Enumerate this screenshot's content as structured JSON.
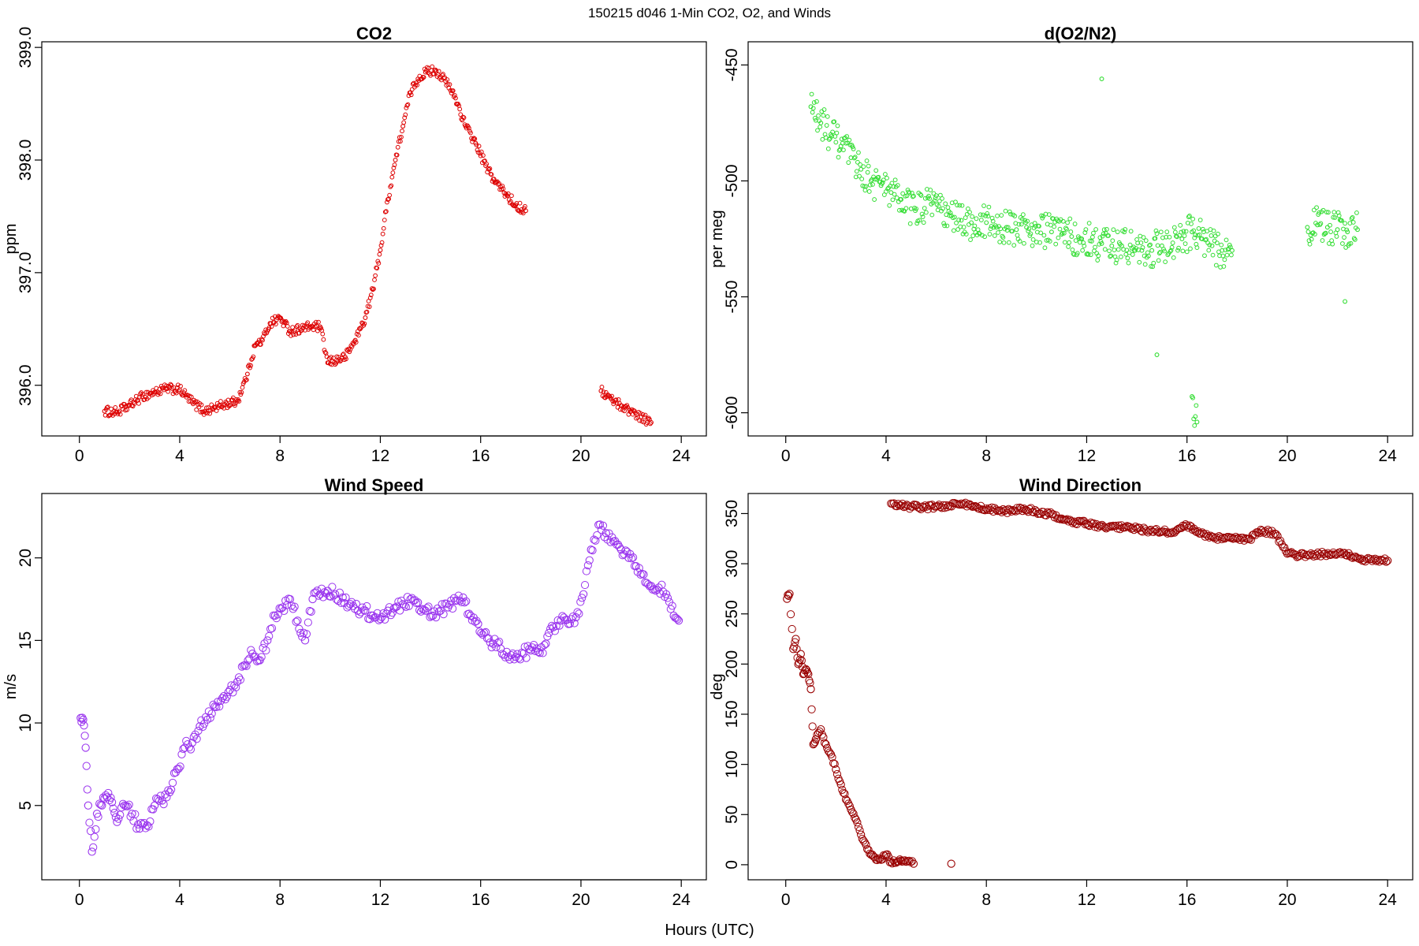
{
  "figure": {
    "suptitle": "150215   d046   1-Min CO2, O2, and Winds",
    "common_xlabel": "Hours (UTC)"
  },
  "chart_data": [
    {
      "id": "co2",
      "type": "scatter",
      "title": "CO2",
      "xlabel": "",
      "ylabel": "ppm",
      "xlim": [
        -1.5,
        25.0
      ],
      "ylim": [
        395.55,
        399.05
      ],
      "xticks": [
        0,
        4,
        8,
        12,
        16,
        20,
        24
      ],
      "yticks": [
        396.0,
        397.0,
        398.0,
        399.0
      ],
      "ytick_labels": [
        "396.0",
        "397.0",
        "398.0",
        "399.0"
      ],
      "ytick_rotate": true,
      "color": "#dd0000",
      "marker_size": "small",
      "series": [
        {
          "name": "CO2",
          "x": [
            1.0,
            1.5,
            2.0,
            2.5,
            3.0,
            3.5,
            4.0,
            4.5,
            5.0,
            5.8,
            6.3,
            6.7,
            7.0,
            7.3,
            7.6,
            8.0,
            8.4,
            8.8,
            9.2,
            9.6,
            9.9,
            10.6,
            11.0,
            11.4,
            11.7,
            12.0,
            12.3,
            12.6,
            12.9,
            13.2,
            13.5,
            13.8,
            14.2,
            14.6,
            15.0,
            15.4,
            15.8,
            16.2,
            16.6,
            17.0,
            17.4,
            17.8,
            20.8,
            21.2,
            21.6,
            22.0,
            22.4,
            22.8
          ],
          "y": [
            395.77,
            395.76,
            395.82,
            395.9,
            395.94,
            395.97,
            395.96,
            395.85,
            395.77,
            395.83,
            395.86,
            396.1,
            396.35,
            396.4,
            396.55,
            396.6,
            396.48,
            396.5,
            396.52,
            396.52,
            396.2,
            396.25,
            396.4,
            396.6,
            396.85,
            397.2,
            397.65,
            398.0,
            398.3,
            398.6,
            398.72,
            398.78,
            398.8,
            398.7,
            398.55,
            398.3,
            398.15,
            397.95,
            397.8,
            397.7,
            397.6,
            397.55,
            395.95,
            395.88,
            395.82,
            395.77,
            395.72,
            395.67
          ]
        }
      ]
    },
    {
      "id": "o2",
      "type": "scatter",
      "title": "d(O2/N2)",
      "xlabel": "",
      "ylabel": "per meg",
      "xlim": [
        -1.5,
        25.0
      ],
      "ylim": [
        -610,
        -440
      ],
      "xticks": [
        0,
        4,
        8,
        12,
        16,
        20,
        24
      ],
      "yticks": [
        -600,
        -550,
        -500,
        -450
      ],
      "ytick_labels": [
        "-600",
        "-550",
        "-500",
        "-450"
      ],
      "ytick_rotate": true,
      "color": "#33dd33",
      "marker_size": "small",
      "series": [
        {
          "name": "O2",
          "x": [
            1.0,
            1.4,
            1.8,
            2.2,
            2.6,
            3.0,
            3.4,
            3.8,
            4.2,
            4.6,
            5.0,
            5.8,
            6.2,
            6.6,
            7.0,
            7.4,
            8.0,
            8.4,
            8.8,
            9.2,
            9.6,
            10.6,
            11.0,
            11.4,
            11.8,
            12.2,
            12.6,
            13.0,
            13.4,
            13.8,
            14.2,
            14.6,
            15.0,
            15.8,
            16.2,
            16.6,
            17.0,
            17.4,
            17.8,
            20.8,
            21.2,
            21.6,
            22.0,
            22.4,
            22.8,
            12.6,
            14.8,
            16.2,
            16.4,
            22.3
          ],
          "y": [
            -468,
            -475,
            -480,
            -485,
            -490,
            -495,
            -500,
            -502,
            -505,
            -508,
            -512,
            -510,
            -513,
            -515,
            -517,
            -518,
            -518,
            -520,
            -520,
            -521,
            -520,
            -522,
            -523,
            -524,
            -525,
            -526,
            -527,
            -528,
            -528,
            -529,
            -530,
            -530,
            -528,
            -525,
            -522,
            -525,
            -528,
            -530,
            -530,
            -520,
            -519,
            -520,
            -521,
            -522,
            -521,
            -456,
            -575,
            -593,
            -604,
            -552
          ]
        }
      ]
    },
    {
      "id": "wind_speed",
      "type": "scatter",
      "title": "Wind Speed",
      "xlabel": "",
      "ylabel": "m/s",
      "xlim": [
        -1.5,
        25.0
      ],
      "ylim": [
        0.5,
        23.9
      ],
      "xticks": [
        0,
        4,
        8,
        12,
        16,
        20,
        24
      ],
      "yticks": [
        5,
        10,
        15,
        20
      ],
      "ytick_labels": [
        "5",
        "10",
        "15",
        "20"
      ],
      "ytick_rotate": true,
      "color": "#9933ee",
      "marker_size": "large",
      "series": [
        {
          "name": "Wind Speed",
          "x": [
            0.05,
            0.15,
            0.25,
            0.35,
            0.5,
            0.7,
            0.9,
            1.1,
            1.3,
            1.5,
            1.8,
            2.1,
            2.4,
            2.7,
            3.0,
            3.3,
            3.6,
            3.9,
            4.2,
            4.5,
            4.8,
            5.1,
            5.4,
            5.7,
            6.0,
            6.3,
            6.6,
            6.9,
            7.2,
            7.5,
            7.8,
            8.1,
            8.4,
            8.7,
            9.0,
            9.3,
            9.6,
            9.9,
            10.2,
            10.5,
            10.8,
            11.1,
            11.4,
            11.7,
            12.0,
            12.3,
            12.6,
            12.9,
            13.2,
            13.5,
            13.8,
            14.1,
            14.4,
            14.7,
            15.0,
            15.3,
            15.6,
            15.9,
            16.2,
            16.5,
            16.8,
            17.1,
            17.4,
            17.7,
            18.0,
            18.3,
            18.6,
            18.9,
            19.2,
            19.5,
            19.8,
            20.1,
            20.4,
            20.7,
            21.0,
            21.3,
            21.6,
            21.9,
            22.2,
            22.5,
            22.8,
            23.1,
            23.4,
            23.7,
            23.9
          ],
          "y": [
            10.3,
            10.2,
            8.5,
            5.0,
            2.2,
            4.5,
            5.0,
            5.5,
            5.2,
            4.0,
            5.0,
            4.5,
            3.6,
            3.8,
            5.0,
            5.3,
            5.8,
            7.2,
            8.5,
            8.8,
            9.8,
            10.2,
            11.0,
            11.5,
            12.0,
            12.5,
            13.5,
            14.2,
            13.8,
            15.0,
            16.5,
            17.0,
            17.5,
            16.2,
            15.0,
            17.5,
            17.8,
            18.0,
            17.8,
            17.6,
            17.2,
            16.8,
            16.8,
            16.5,
            16.3,
            16.8,
            17.0,
            17.2,
            17.5,
            17.3,
            16.8,
            16.5,
            16.8,
            17.0,
            17.4,
            17.6,
            16.5,
            16.0,
            15.5,
            14.8,
            14.5,
            14.0,
            14.0,
            14.2,
            14.4,
            14.3,
            14.8,
            15.8,
            16.2,
            16.0,
            16.4,
            17.8,
            20.5,
            22.0,
            21.5,
            21.0,
            20.5,
            20.0,
            19.5,
            19.0,
            18.3,
            18.2,
            17.8,
            16.5,
            16.2
          ]
        }
      ]
    },
    {
      "id": "wind_direction",
      "type": "scatter",
      "title": "Wind Direction",
      "xlabel": "",
      "ylabel": "deg",
      "xlim": [
        -1.5,
        25.0
      ],
      "ylim": [
        -15,
        370
      ],
      "xticks": [
        0,
        4,
        8,
        12,
        16,
        20,
        24
      ],
      "yticks": [
        0,
        50,
        100,
        150,
        200,
        250,
        300,
        350
      ],
      "ytick_labels": [
        "0",
        "50",
        "100",
        "150",
        "200",
        "250",
        "300",
        "350"
      ],
      "ytick_rotate": true,
      "color": "#990000",
      "marker_size": "large",
      "series": [
        {
          "name": "Wind Direction",
          "x": [
            0.05,
            0.15,
            0.3,
            0.4,
            0.5,
            0.6,
            0.7,
            0.8,
            0.9,
            1.0,
            1.1,
            1.2,
            1.4,
            1.6,
            1.8,
            2.0,
            2.2,
            2.4,
            2.6,
            2.8,
            3.0,
            3.2,
            3.4,
            3.6,
            3.8,
            4.0,
            4.2,
            4.4,
            4.6,
            4.8,
            5.1,
            6.6,
            4.2,
            4.6,
            5.0,
            5.5,
            6.0,
            6.5,
            7.0,
            7.5,
            8.0,
            8.5,
            9.0,
            9.5,
            10.0,
            10.5,
            11.0,
            11.5,
            12.0,
            12.5,
            13.0,
            13.5,
            14.0,
            14.5,
            15.0,
            15.5,
            16.0,
            16.5,
            17.0,
            17.5,
            18.0,
            18.5,
            19.0,
            19.5,
            20.0,
            20.5,
            21.0,
            21.5,
            22.0,
            22.5,
            23.0,
            23.5,
            24.0
          ],
          "y": [
            265,
            270,
            215,
            225,
            200,
            210,
            190,
            195,
            190,
            175,
            120,
            125,
            135,
            120,
            110,
            95,
            80,
            65,
            55,
            45,
            30,
            20,
            10,
            5,
            5,
            10,
            3,
            2,
            4,
            3,
            1,
            1,
            360,
            358,
            357,
            356,
            357,
            358,
            360,
            357,
            355,
            353,
            352,
            355,
            352,
            350,
            345,
            342,
            340,
            338,
            337,
            336,
            335,
            333,
            332,
            331,
            338,
            330,
            327,
            325,
            325,
            325,
            333,
            330,
            310,
            308,
            309,
            310,
            310,
            308,
            303,
            305,
            303
          ]
        }
      ]
    }
  ]
}
